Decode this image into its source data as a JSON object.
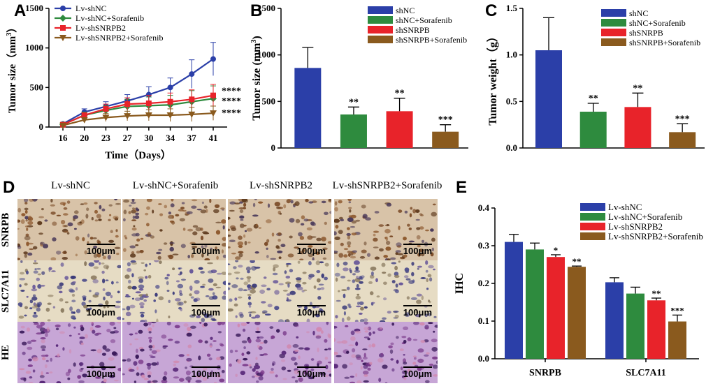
{
  "panels": {
    "A": "A",
    "B": "B",
    "C": "C",
    "D": "D",
    "E": "E"
  },
  "chart_data": [
    {
      "id": "A",
      "type": "line",
      "xlabel": "Time（Days）",
      "ylabel": "Tumor size（mm",
      "ylabel_sup": "3",
      "ylabel_end": "）",
      "x": [
        16,
        20,
        23,
        27,
        30,
        34,
        37,
        41
      ],
      "x_ticks": [
        "16",
        "20",
        "23",
        "27",
        "30",
        "34",
        "37",
        "41"
      ],
      "ylim": [
        0,
        1500
      ],
      "y_ticks": [
        "0",
        "500",
        "1000",
        "1500"
      ],
      "series": [
        {
          "name": "Lv-shNC",
          "color": "#2b3fa8",
          "marker": "circle",
          "values": [
            40,
            190,
            260,
            330,
            410,
            500,
            670,
            860
          ],
          "err": [
            10,
            40,
            60,
            80,
            100,
            120,
            180,
            210
          ]
        },
        {
          "name": "Lv-shNC+Sorafenib",
          "color": "#2e8b3e",
          "marker": "diamond",
          "values": [
            30,
            150,
            210,
            260,
            270,
            280,
            320,
            360
          ],
          "err": [
            10,
            40,
            60,
            90,
            110,
            120,
            140,
            160
          ]
        },
        {
          "name": "Lv-shSNRPB2",
          "color": "#e8232a",
          "marker": "square",
          "values": [
            30,
            150,
            230,
            290,
            300,
            320,
            350,
            400
          ],
          "err": [
            10,
            30,
            60,
            80,
            100,
            110,
            120,
            140
          ]
        },
        {
          "name": "Lv-shSNRPB2+Sorafenib",
          "color": "#8a5a1e",
          "marker": "triangle",
          "values": [
            20,
            90,
            120,
            140,
            150,
            150,
            160,
            175
          ],
          "err": [
            10,
            30,
            50,
            60,
            70,
            80,
            90,
            90
          ]
        }
      ],
      "annotations": [
        "****",
        "****",
        "****"
      ]
    },
    {
      "id": "B",
      "type": "bar",
      "ylabel": "Tumor size (mm",
      "ylabel_sup": "3",
      "ylabel_end": ")",
      "ylim": [
        0,
        1500
      ],
      "y_ticks": [
        "0",
        "500",
        "1000",
        "1500"
      ],
      "series": [
        {
          "name": "shNC",
          "color": "#2b3fa8",
          "value": 860,
          "err": 220,
          "sig": ""
        },
        {
          "name": "shNC+Sorafenib",
          "color": "#2e8b3e",
          "value": 360,
          "err": 80,
          "sig": "**"
        },
        {
          "name": "shSNRPB",
          "color": "#e8232a",
          "value": 395,
          "err": 140,
          "sig": "**"
        },
        {
          "name": "shSNRPB+Sorafenib",
          "color": "#8a5a1e",
          "value": 175,
          "err": 75,
          "sig": "***"
        }
      ]
    },
    {
      "id": "C",
      "type": "bar",
      "ylabel": "Tumor weight（g）",
      "ylim": [
        0,
        1.5
      ],
      "y_ticks": [
        "0.0",
        "0.5",
        "1.0",
        "1.5"
      ],
      "series": [
        {
          "name": "shNC",
          "color": "#2b3fa8",
          "value": 1.05,
          "err": 0.35,
          "sig": ""
        },
        {
          "name": "shNC+Sorafenib",
          "color": "#2e8b3e",
          "value": 0.39,
          "err": 0.09,
          "sig": "**"
        },
        {
          "name": "shSNRPB",
          "color": "#e8232a",
          "value": 0.44,
          "err": 0.15,
          "sig": "**"
        },
        {
          "name": "shSNRPB+Sorafenib",
          "color": "#8a5a1e",
          "value": 0.17,
          "err": 0.09,
          "sig": "***"
        }
      ]
    },
    {
      "id": "E",
      "type": "bar",
      "ylabel": "IHC",
      "ylim": [
        0,
        0.4
      ],
      "y_ticks": [
        "0.0",
        "0.1",
        "0.2",
        "0.3",
        "0.4"
      ],
      "categories": [
        "SNRPB",
        "SLC7A11"
      ],
      "series": [
        {
          "name": "Lv-shNC",
          "color": "#2b3fa8",
          "values": [
            0.31,
            0.203
          ],
          "err": [
            0.02,
            0.012
          ],
          "sig": [
            "",
            ""
          ]
        },
        {
          "name": "Lv-shNC+Sorafenib",
          "color": "#2e8b3e",
          "values": [
            0.29,
            0.173
          ],
          "err": [
            0.017,
            0.017
          ],
          "sig": [
            "",
            ""
          ]
        },
        {
          "name": "Lv-shSNRPB2",
          "color": "#e8232a",
          "values": [
            0.27,
            0.155
          ],
          "err": [
            0.006,
            0.006
          ],
          "sig": [
            "*",
            "**"
          ]
        },
        {
          "name": "Lv-shSNRPB2+Sorafenib",
          "color": "#8a5a1e",
          "values": [
            0.244,
            0.099
          ],
          "err": [
            0.002,
            0.017
          ],
          "sig": [
            "**",
            "***"
          ]
        }
      ]
    }
  ],
  "ihc": {
    "columns": [
      "Lv-shNC",
      "Lv-shNC+Sorafenib",
      "Lv-shSNRPB2",
      "Lv-shSNRPB2+Sorafenib"
    ],
    "rows": [
      "SNRPB",
      "SLC7A11",
      "HE"
    ],
    "scale_label": "100μm"
  }
}
